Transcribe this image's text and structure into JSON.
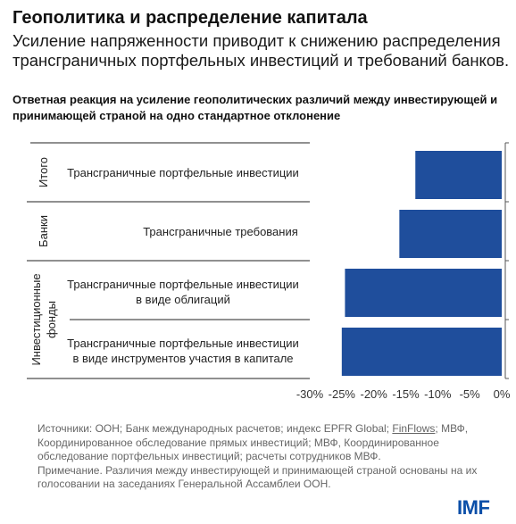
{
  "header": {
    "title": "Геополитика и распределение капитала",
    "subtitle_line1": "Усиление напряженности приводит к снижению распределения",
    "subtitle_line2": "трансграничных портфельных инвестиций и требований банков.",
    "chart_title_line1": "Ответная реакция на усиление геополитических различий между инвестирующей и",
    "chart_title_line2": "принимающей страной на одно стандартное отклонение"
  },
  "chart_data": {
    "type": "bar",
    "orientation": "horizontal",
    "groups": [
      {
        "label": "Итого",
        "rows": [
          0
        ]
      },
      {
        "label": "Банки",
        "rows": [
          1
        ]
      },
      {
        "label_line1": "Инвестиционные",
        "label_line2": "фонды",
        "rows": [
          2,
          3
        ]
      }
    ],
    "categories": [
      {
        "line1": "Трансграничные портфельные инвестиции",
        "line2": ""
      },
      {
        "line1": "Трансграничные требования",
        "line2": ""
      },
      {
        "line1": "Трансграничные портфельные инвестиции",
        "line2": "в виде облигаций"
      },
      {
        "line1": "Трансграничные портфельные инвестиции",
        "line2": "в виде инструментов участия в капитале"
      }
    ],
    "values": [
      -13.5,
      -16,
      -24.5,
      -25
    ],
    "xlim": [
      -30,
      0
    ],
    "xticks": [
      "-30%",
      "-25%",
      "-20%",
      "-15%",
      "-10%",
      "-5%",
      "0%"
    ],
    "bar_color": "#1f4e9c"
  },
  "sources": {
    "line1_pre": "Источники: ООН; Банк международных расчетов; индекс EPFR Global; ",
    "line1_link": "FinFlows",
    "line1_post": "; МВФ,",
    "line2": "Координированное обследование прямых инвестиций; МВФ, Координированное",
    "line3": "обследование портфельных инвестиций; расчеты сотрудников МВФ.",
    "line4": "Примечание. Различия между инвестирующей и принимающей страной основаны на их",
    "line5": "голосовании на заседаниях Генеральной Ассамблеи ООН."
  },
  "logo": "IMF"
}
